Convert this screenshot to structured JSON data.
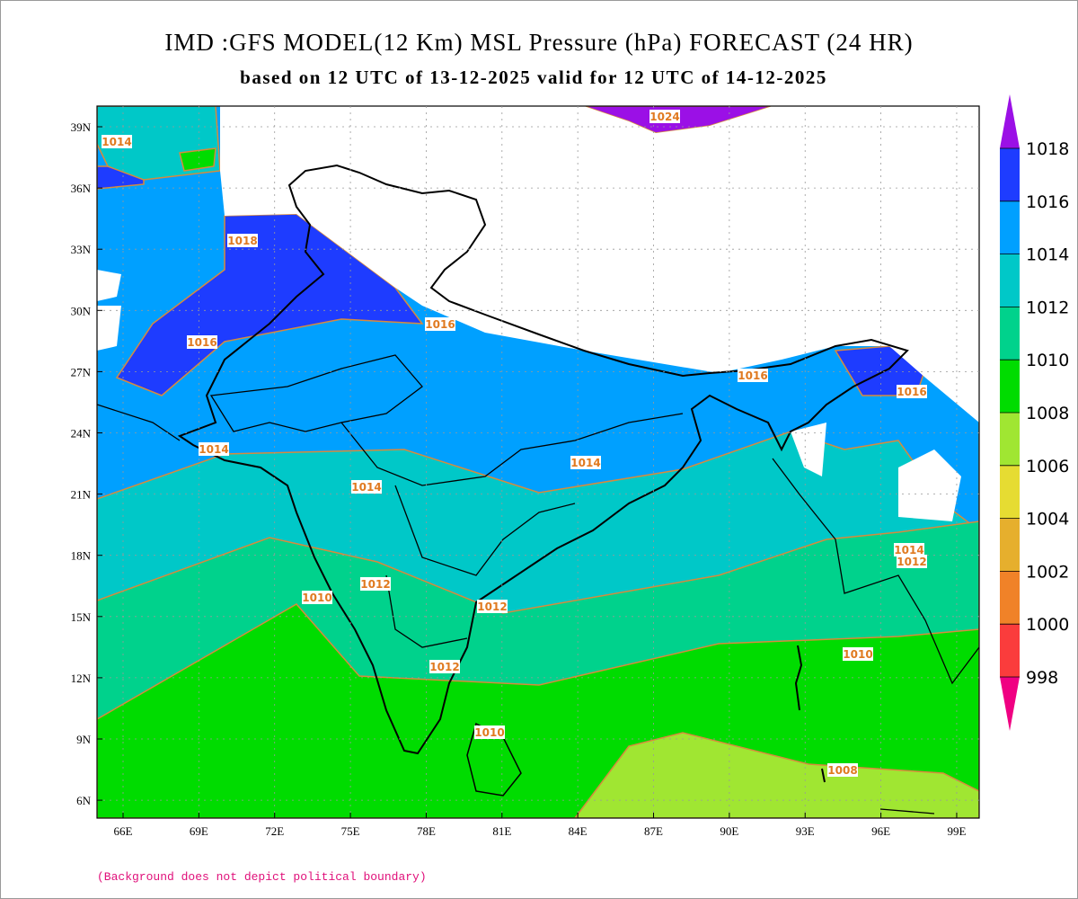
{
  "title": "IMD :GFS MODEL(12 Km) MSL Pressure (hPa) FORECAST (24 HR)",
  "subtitle": "based on 12 UTC of 13-12-2025 valid for 12 UTC of 14-12-2025",
  "lat_labels": [
    "39N",
    "36N",
    "33N",
    "30N",
    "27N",
    "24N",
    "21N",
    "18N",
    "15N",
    "12N",
    "9N",
    "6N"
  ],
  "lon_labels": [
    "66E",
    "69E",
    "72E",
    "75E",
    "78E",
    "81E",
    "84E",
    "87E",
    "90E",
    "93E",
    "96E",
    "99E"
  ],
  "colorbar": {
    "labels": [
      1018,
      1016,
      1014,
      1012,
      1010,
      1008,
      1006,
      1004,
      1002,
      1000,
      998
    ],
    "colors": [
      "#9b10e6",
      "#1e3cff",
      "#00a0ff",
      "#00c8c8",
      "#00d28c",
      "#00dc00",
      "#a0e632",
      "#e6dc32",
      "#e6af2d",
      "#f08228",
      "#fa3c3c",
      "#f00082"
    ]
  },
  "contour_labels": [
    "1014",
    "1018",
    "1016",
    "1016",
    "1014",
    "1014",
    "1014",
    "1012",
    "1012",
    "1012",
    "1010",
    "1010",
    "1010",
    "1008",
    "1024",
    "1016",
    "1016",
    "1014",
    "1012"
  ],
  "footnote": "(Background does not depict political boundary)"
}
